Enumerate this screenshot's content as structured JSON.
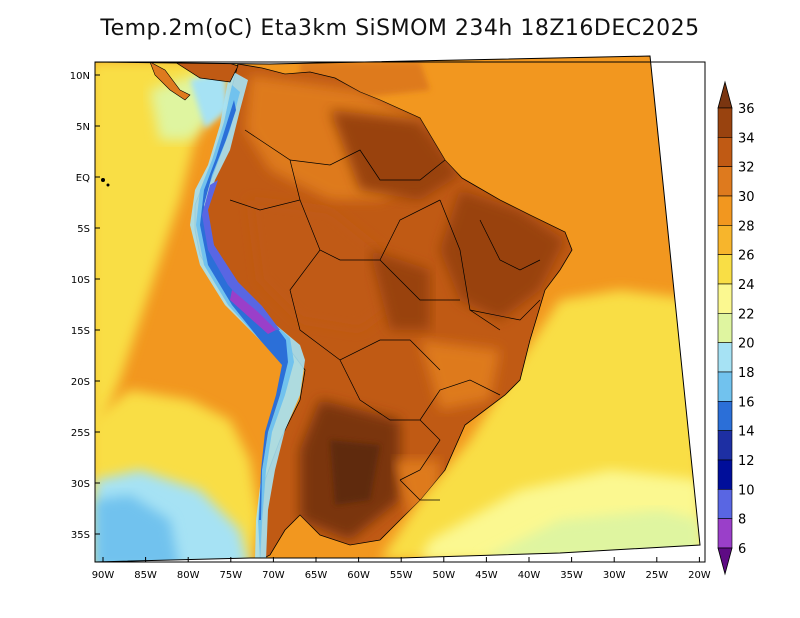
{
  "title": "Temp.2m(oC) Eta3km SiSMOM 234h 18Z16DEC2025",
  "map": {
    "variable": "2 m temperature",
    "units": "oC",
    "model": "Eta3km SiSMOM",
    "forecast_hour": "234h",
    "valid_time": "18Z16DEC2025",
    "lat_labels": [
      "10N",
      "5N",
      "EQ",
      "5S",
      "10S",
      "15S",
      "20S",
      "25S",
      "30S",
      "35S"
    ],
    "lon_labels": [
      "90W",
      "85W",
      "80W",
      "75W",
      "70W",
      "65W",
      "60W",
      "55W",
      "50W",
      "45W",
      "40W",
      "35W",
      "30W",
      "25W",
      "20W"
    ]
  },
  "colorbar": {
    "labels": [
      "36",
      "34",
      "32",
      "30",
      "28",
      "26",
      "24",
      "22",
      "20",
      "18",
      "16",
      "14",
      "12",
      "10",
      "8",
      "6"
    ],
    "colors": [
      "#7a3510",
      "#99430f",
      "#c05a14",
      "#de7a1e",
      "#f2971f",
      "#f7b52c",
      "#f9de45",
      "#fbf890",
      "#dff5a0",
      "#a6e2f4",
      "#71c2ee",
      "#2b6fd8",
      "#1d2fa3",
      "#000e9a",
      "#5966e3",
      "#9a3fc9",
      "#5e0b84"
    ]
  }
}
